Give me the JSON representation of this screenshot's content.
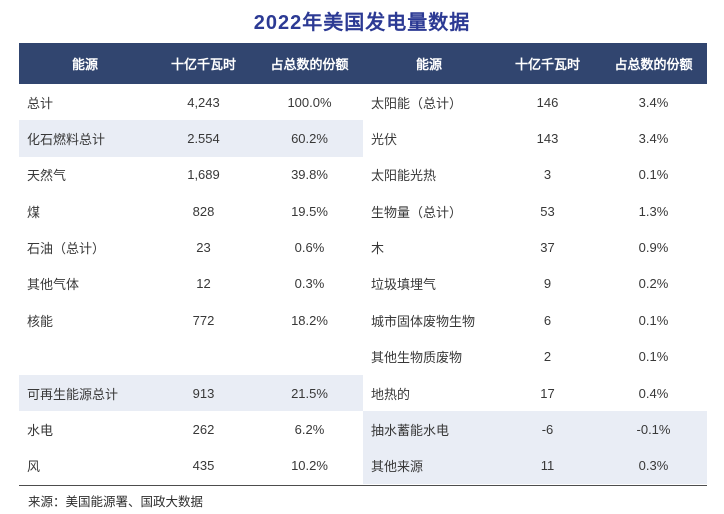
{
  "colors": {
    "title": "#2c3a94",
    "header_bg": "#31456f",
    "header_text": "#ffffff",
    "row_highlight": "#e9edf5",
    "body_text": "#383838",
    "rule": "#4d4d4d"
  },
  "chart_data": {
    "type": "table",
    "title": "2022年美国发电量数据",
    "columns": [
      "能源",
      "十亿千瓦时",
      "占总数的份额"
    ],
    "left_rows": [
      {
        "name": "总计",
        "value": "4,243",
        "share": "100.0%",
        "highlight": false
      },
      {
        "name": "化石燃料总计",
        "value": "2.554",
        "share": "60.2%",
        "highlight": true
      },
      {
        "name": "天然气",
        "value": "1,689",
        "share": "39.8%",
        "highlight": false
      },
      {
        "name": "煤",
        "value": "828",
        "share": "19.5%",
        "highlight": false
      },
      {
        "name": "石油（总计）",
        "value": "23",
        "share": "0.6%",
        "highlight": false
      },
      {
        "name": "其他气体",
        "value": "12",
        "share": "0.3%",
        "highlight": false
      },
      {
        "name": "核能",
        "value": "772",
        "share": "18.2%",
        "highlight": false
      },
      {
        "name": "",
        "value": "",
        "share": "",
        "highlight": false
      },
      {
        "name": "可再生能源总计",
        "value": "913",
        "share": "21.5%",
        "highlight": true
      },
      {
        "name": "水电",
        "value": "262",
        "share": "6.2%",
        "highlight": false
      },
      {
        "name": "风",
        "value": "435",
        "share": "10.2%",
        "highlight": false
      }
    ],
    "right_rows": [
      {
        "name": "太阳能（总计）",
        "value": "146",
        "share": "3.4%",
        "highlight": false
      },
      {
        "name": "光伏",
        "value": "143",
        "share": "3.4%",
        "highlight": false
      },
      {
        "name": "太阳能光热",
        "value": "3",
        "share": "0.1%",
        "highlight": false
      },
      {
        "name": "生物量（总计）",
        "value": "53",
        "share": "1.3%",
        "highlight": false
      },
      {
        "name": "木",
        "value": "37",
        "share": "0.9%",
        "highlight": false
      },
      {
        "name": "垃圾填埋气",
        "value": "9",
        "share": "0.2%",
        "highlight": false
      },
      {
        "name": "城市固体废物生物",
        "value": "6",
        "share": "0.1%",
        "highlight": false
      },
      {
        "name": "其他生物质废物",
        "value": "2",
        "share": "0.1%",
        "highlight": false
      },
      {
        "name": "地热的",
        "value": "17",
        "share": "0.4%",
        "highlight": false
      },
      {
        "name": "抽水蓄能水电",
        "value": "-6",
        "share": "-0.1%",
        "highlight": true
      },
      {
        "name": "其他来源",
        "value": "11",
        "share": "0.3%",
        "highlight": true
      }
    ],
    "source": "来源：美国能源署、国政大数据"
  }
}
